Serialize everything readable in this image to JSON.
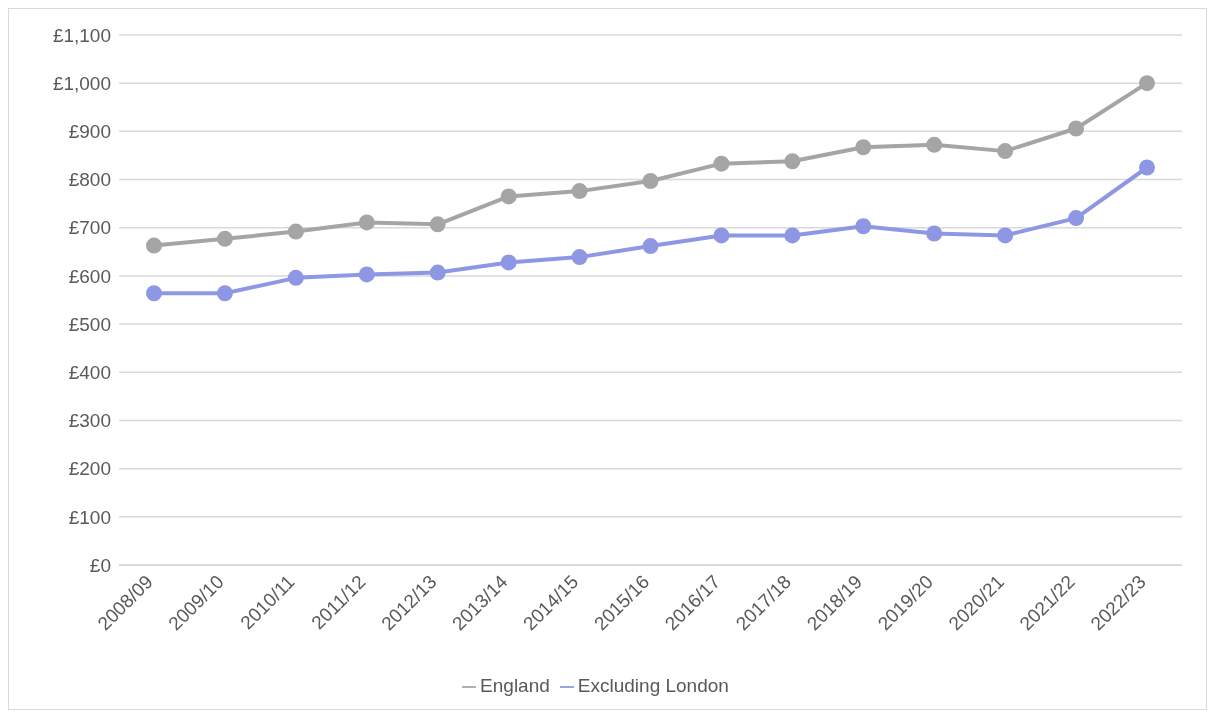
{
  "chart_data": {
    "type": "line",
    "categories": [
      "2008/09",
      "2009/10",
      "2010/11",
      "2011/12",
      "2012/13",
      "2013/14",
      "2014/15",
      "2015/16",
      "2016/17",
      "2017/18",
      "2018/19",
      "2019/20",
      "2020/21",
      "2021/22",
      "2022/23"
    ],
    "series": [
      {
        "name": "England",
        "color": "#a5a5a5",
        "values": [
          663,
          677,
          692,
          711,
          707,
          765,
          776,
          797,
          833,
          838,
          867,
          872,
          859,
          906,
          1000
        ]
      },
      {
        "name": "Excluding London",
        "color": "#8e97e3",
        "values": [
          564,
          564,
          596,
          603,
          607,
          628,
          639,
          662,
          684,
          684,
          703,
          688,
          684,
          720,
          825
        ]
      }
    ],
    "ylim": [
      0,
      1100
    ],
    "yticks": [
      {
        "value": 0,
        "label": "£0"
      },
      {
        "value": 100,
        "label": "£100"
      },
      {
        "value": 200,
        "label": "£200"
      },
      {
        "value": 300,
        "label": "£300"
      },
      {
        "value": 400,
        "label": "£400"
      },
      {
        "value": 500,
        "label": "£500"
      },
      {
        "value": 600,
        "label": "£600"
      },
      {
        "value": 700,
        "label": "£700"
      },
      {
        "value": 800,
        "label": "£800"
      },
      {
        "value": 900,
        "label": "£900"
      },
      {
        "value": 1000,
        "label": "£1,000"
      },
      {
        "value": 1100,
        "label": "£1,100"
      }
    ],
    "grid": "y",
    "legend": "bottom",
    "marker": "circle",
    "line_style": "solid"
  }
}
